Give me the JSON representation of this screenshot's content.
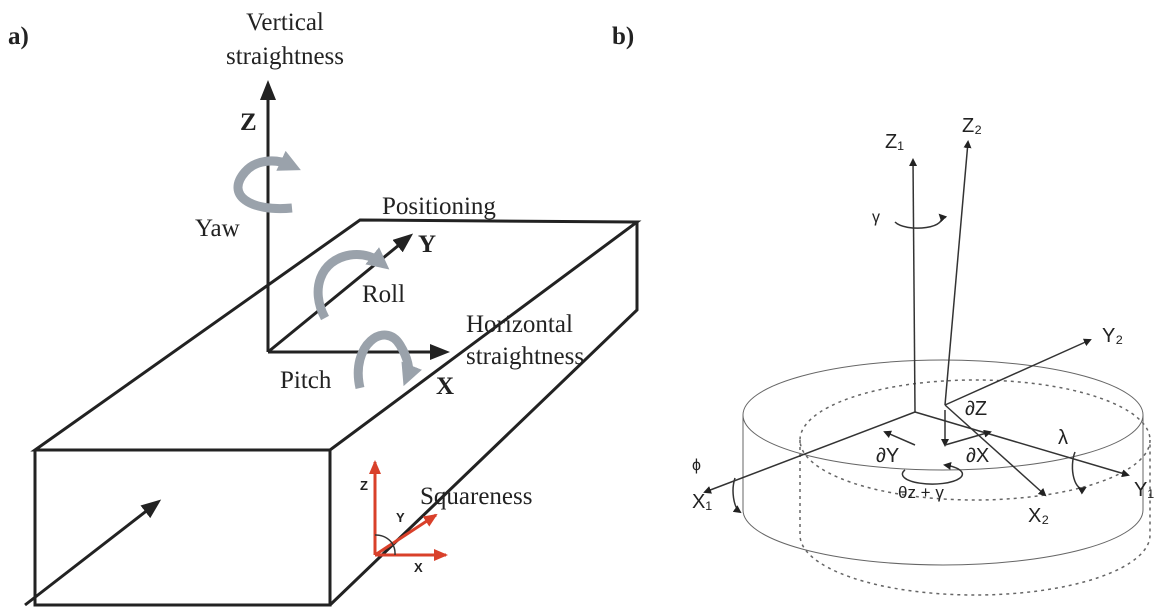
{
  "panel_a": {
    "label": "a)",
    "vertical": [
      "Vertical",
      "straightness"
    ],
    "z": "Z",
    "yaw": "Yaw",
    "positioning": "Positioning",
    "y": "Y",
    "roll": "Roll",
    "horizontal": [
      "Horizontal",
      "straightness"
    ],
    "pitch": "Pitch",
    "x": "X",
    "squareness": "Squareness",
    "small_z": "Z",
    "small_y": "Y",
    "small_x": "X"
  },
  "panel_b": {
    "label": "b)",
    "z1": "Z₁",
    "z2": "Z₂",
    "gamma": "γ",
    "y2": "Y₂",
    "dz": "∂Z",
    "lambda": "λ",
    "phi": "ϕ",
    "x1": "X₁",
    "dy": "∂Y",
    "dx": "∂X",
    "theta": "θz + γ",
    "x2": "X₂",
    "y1": "Y₁"
  }
}
